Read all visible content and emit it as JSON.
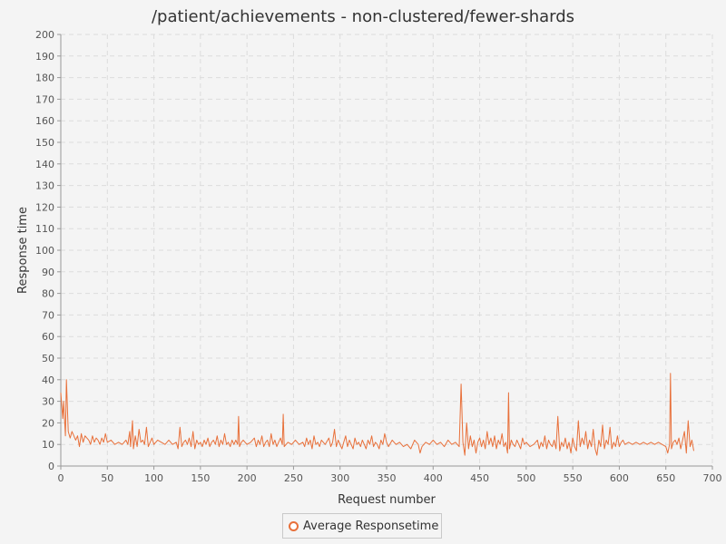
{
  "chart_data": {
    "type": "line",
    "title": "/patient/achievements - non-clustered/fewer-shards",
    "xlabel": "Request number",
    "ylabel": "Response time",
    "xlim": [
      0,
      700
    ],
    "ylim": [
      0,
      200
    ],
    "x_ticks": [
      "0",
      "50",
      "100",
      "150",
      "200",
      "250",
      "300",
      "350",
      "400",
      "450",
      "500",
      "550",
      "600",
      "650",
      "700"
    ],
    "y_ticks": [
      "0",
      "10",
      "20",
      "30",
      "40",
      "50",
      "60",
      "70",
      "80",
      "90",
      "100",
      "110",
      "120",
      "130",
      "140",
      "150",
      "160",
      "170",
      "180",
      "190",
      "200"
    ],
    "grid": true,
    "legend_position": "bottom-center",
    "series": [
      {
        "name": "Average Responsetime",
        "color": "#e8703a",
        "points": [
          [
            0,
            34
          ],
          [
            2,
            22
          ],
          [
            3,
            30
          ],
          [
            5,
            14
          ],
          [
            6,
            40
          ],
          [
            8,
            16
          ],
          [
            10,
            13
          ],
          [
            12,
            16
          ],
          [
            14,
            14
          ],
          [
            16,
            12
          ],
          [
            18,
            14
          ],
          [
            20,
            9
          ],
          [
            22,
            15
          ],
          [
            24,
            11
          ],
          [
            26,
            14
          ],
          [
            28,
            13
          ],
          [
            30,
            12
          ],
          [
            32,
            10
          ],
          [
            34,
            14
          ],
          [
            36,
            11
          ],
          [
            38,
            13
          ],
          [
            40,
            12
          ],
          [
            42,
            10
          ],
          [
            44,
            13
          ],
          [
            46,
            11
          ],
          [
            48,
            15
          ],
          [
            50,
            11
          ],
          [
            54,
            12
          ],
          [
            58,
            10
          ],
          [
            62,
            11
          ],
          [
            66,
            10
          ],
          [
            70,
            12
          ],
          [
            72,
            10
          ],
          [
            74,
            16
          ],
          [
            75,
            9
          ],
          [
            77,
            21
          ],
          [
            78,
            8
          ],
          [
            80,
            14
          ],
          [
            82,
            9
          ],
          [
            84,
            17
          ],
          [
            86,
            11
          ],
          [
            88,
            12
          ],
          [
            90,
            10
          ],
          [
            92,
            18
          ],
          [
            94,
            9
          ],
          [
            96,
            11
          ],
          [
            98,
            13
          ],
          [
            100,
            10
          ],
          [
            104,
            12
          ],
          [
            108,
            11
          ],
          [
            112,
            10
          ],
          [
            116,
            12
          ],
          [
            120,
            10
          ],
          [
            124,
            11
          ],
          [
            126,
            8
          ],
          [
            128,
            18
          ],
          [
            130,
            9
          ],
          [
            132,
            11
          ],
          [
            134,
            12
          ],
          [
            136,
            10
          ],
          [
            138,
            13
          ],
          [
            140,
            9
          ],
          [
            142,
            16
          ],
          [
            144,
            8
          ],
          [
            146,
            12
          ],
          [
            148,
            10
          ],
          [
            150,
            11
          ],
          [
            152,
            9
          ],
          [
            154,
            12
          ],
          [
            156,
            10
          ],
          [
            158,
            13
          ],
          [
            160,
            9
          ],
          [
            162,
            11
          ],
          [
            164,
            12
          ],
          [
            166,
            10
          ],
          [
            168,
            14
          ],
          [
            170,
            9
          ],
          [
            172,
            12
          ],
          [
            174,
            10
          ],
          [
            176,
            15
          ],
          [
            178,
            10
          ],
          [
            180,
            11
          ],
          [
            182,
            9
          ],
          [
            184,
            12
          ],
          [
            186,
            10
          ],
          [
            188,
            12
          ],
          [
            190,
            10
          ],
          [
            191,
            23
          ],
          [
            192,
            9
          ],
          [
            194,
            11
          ],
          [
            196,
            12
          ],
          [
            200,
            10
          ],
          [
            204,
            11
          ],
          [
            208,
            13
          ],
          [
            210,
            9
          ],
          [
            212,
            12
          ],
          [
            214,
            10
          ],
          [
            216,
            14
          ],
          [
            218,
            9
          ],
          [
            220,
            11
          ],
          [
            222,
            12
          ],
          [
            224,
            9
          ],
          [
            226,
            15
          ],
          [
            228,
            10
          ],
          [
            230,
            12
          ],
          [
            232,
            9
          ],
          [
            234,
            11
          ],
          [
            236,
            13
          ],
          [
            238,
            10
          ],
          [
            239,
            24
          ],
          [
            240,
            9
          ],
          [
            244,
            11
          ],
          [
            248,
            10
          ],
          [
            252,
            12
          ],
          [
            256,
            10
          ],
          [
            260,
            11
          ],
          [
            262,
            9
          ],
          [
            264,
            13
          ],
          [
            266,
            10
          ],
          [
            268,
            12
          ],
          [
            270,
            8
          ],
          [
            272,
            14
          ],
          [
            274,
            10
          ],
          [
            276,
            11
          ],
          [
            278,
            9
          ],
          [
            280,
            12
          ],
          [
            284,
            10
          ],
          [
            288,
            13
          ],
          [
            290,
            9
          ],
          [
            292,
            11
          ],
          [
            294,
            17
          ],
          [
            296,
            9
          ],
          [
            298,
            12
          ],
          [
            300,
            10
          ],
          [
            302,
            8
          ],
          [
            304,
            11
          ],
          [
            306,
            14
          ],
          [
            308,
            9
          ],
          [
            310,
            12
          ],
          [
            312,
            10
          ],
          [
            314,
            8
          ],
          [
            316,
            13
          ],
          [
            318,
            10
          ],
          [
            320,
            11
          ],
          [
            322,
            9
          ],
          [
            324,
            12
          ],
          [
            326,
            10
          ],
          [
            328,
            8
          ],
          [
            330,
            12
          ],
          [
            332,
            10
          ],
          [
            334,
            14
          ],
          [
            336,
            9
          ],
          [
            338,
            11
          ],
          [
            340,
            10
          ],
          [
            342,
            8
          ],
          [
            344,
            12
          ],
          [
            346,
            10
          ],
          [
            348,
            15
          ],
          [
            350,
            11
          ],
          [
            352,
            9
          ],
          [
            356,
            12
          ],
          [
            360,
            10
          ],
          [
            364,
            11
          ],
          [
            368,
            9
          ],
          [
            372,
            10
          ],
          [
            376,
            8
          ],
          [
            380,
            12
          ],
          [
            384,
            10
          ],
          [
            386,
            6
          ],
          [
            388,
            9
          ],
          [
            392,
            11
          ],
          [
            396,
            10
          ],
          [
            400,
            12
          ],
          [
            404,
            10
          ],
          [
            408,
            11
          ],
          [
            412,
            9
          ],
          [
            416,
            12
          ],
          [
            420,
            10
          ],
          [
            424,
            11
          ],
          [
            428,
            9
          ],
          [
            430,
            38
          ],
          [
            432,
            11
          ],
          [
            434,
            5
          ],
          [
            436,
            20
          ],
          [
            438,
            8
          ],
          [
            440,
            14
          ],
          [
            442,
            9
          ],
          [
            444,
            12
          ],
          [
            446,
            6
          ],
          [
            448,
            11
          ],
          [
            450,
            13
          ],
          [
            452,
            9
          ],
          [
            454,
            12
          ],
          [
            456,
            8
          ],
          [
            458,
            16
          ],
          [
            460,
            10
          ],
          [
            462,
            13
          ],
          [
            464,
            9
          ],
          [
            466,
            14
          ],
          [
            468,
            8
          ],
          [
            470,
            12
          ],
          [
            472,
            10
          ],
          [
            474,
            15
          ],
          [
            476,
            9
          ],
          [
            478,
            11
          ],
          [
            480,
            6
          ],
          [
            481,
            34
          ],
          [
            482,
            8
          ],
          [
            484,
            12
          ],
          [
            486,
            10
          ],
          [
            488,
            9
          ],
          [
            490,
            12
          ],
          [
            492,
            10
          ],
          [
            494,
            8
          ],
          [
            496,
            13
          ],
          [
            498,
            10
          ],
          [
            500,
            11
          ],
          [
            504,
            9
          ],
          [
            508,
            10
          ],
          [
            512,
            12
          ],
          [
            514,
            8
          ],
          [
            516,
            11
          ],
          [
            518,
            9
          ],
          [
            520,
            14
          ],
          [
            522,
            8
          ],
          [
            524,
            12
          ],
          [
            526,
            10
          ],
          [
            528,
            9
          ],
          [
            530,
            12
          ],
          [
            532,
            8
          ],
          [
            534,
            23
          ],
          [
            536,
            7
          ],
          [
            538,
            11
          ],
          [
            540,
            9
          ],
          [
            542,
            13
          ],
          [
            544,
            8
          ],
          [
            546,
            11
          ],
          [
            548,
            6
          ],
          [
            550,
            13
          ],
          [
            552,
            9
          ],
          [
            554,
            7
          ],
          [
            556,
            21
          ],
          [
            558,
            9
          ],
          [
            560,
            13
          ],
          [
            562,
            10
          ],
          [
            564,
            16
          ],
          [
            566,
            8
          ],
          [
            568,
            12
          ],
          [
            570,
            9
          ],
          [
            572,
            17
          ],
          [
            574,
            8
          ],
          [
            576,
            5
          ],
          [
            578,
            12
          ],
          [
            580,
            9
          ],
          [
            582,
            19
          ],
          [
            584,
            8
          ],
          [
            586,
            12
          ],
          [
            588,
            10
          ],
          [
            590,
            18
          ],
          [
            592,
            8
          ],
          [
            594,
            11
          ],
          [
            596,
            9
          ],
          [
            598,
            14
          ],
          [
            600,
            9
          ],
          [
            602,
            11
          ],
          [
            604,
            12
          ],
          [
            606,
            10
          ],
          [
            610,
            11
          ],
          [
            614,
            10
          ],
          [
            618,
            11
          ],
          [
            622,
            10
          ],
          [
            626,
            11
          ],
          [
            630,
            10
          ],
          [
            634,
            11
          ],
          [
            638,
            10
          ],
          [
            642,
            11
          ],
          [
            646,
            10
          ],
          [
            650,
            9
          ],
          [
            652,
            6
          ],
          [
            654,
            10
          ],
          [
            655,
            43
          ],
          [
            656,
            8
          ],
          [
            658,
            11
          ],
          [
            660,
            12
          ],
          [
            662,
            10
          ],
          [
            664,
            13
          ],
          [
            666,
            8
          ],
          [
            668,
            12
          ],
          [
            670,
            16
          ],
          [
            672,
            6
          ],
          [
            674,
            21
          ],
          [
            676,
            9
          ],
          [
            678,
            12
          ],
          [
            680,
            7
          ]
        ]
      }
    ]
  }
}
